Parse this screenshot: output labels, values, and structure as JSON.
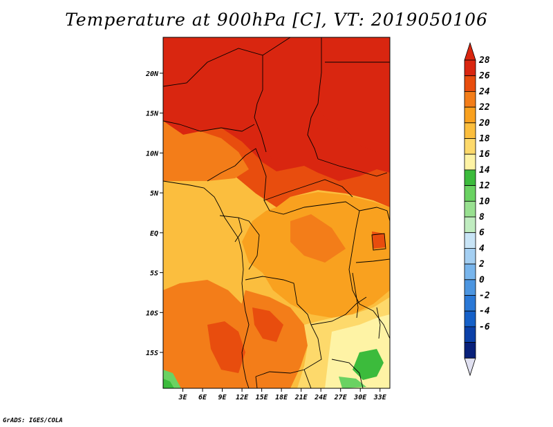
{
  "title": "Temperature at 900hPa [C], VT: 2019050106",
  "credit": "GrADS: IGES/COLA",
  "map": {
    "lat_labels": [
      "20N",
      "15N",
      "10N",
      "5N",
      "EQ",
      "5S",
      "10S",
      "15S"
    ],
    "lon_labels": [
      "3E",
      "6E",
      "9E",
      "12E",
      "15E",
      "18E",
      "21E",
      "24E",
      "27E",
      "30E",
      "33E"
    ],
    "lat_values": [
      20,
      15,
      10,
      5,
      0,
      -5,
      -10,
      -15
    ],
    "lon_values": [
      3,
      6,
      9,
      12,
      15,
      18,
      21,
      24,
      27,
      30,
      33
    ],
    "lon_range": [
      0,
      34.5
    ],
    "lat_range": [
      -19.5,
      24.5
    ]
  },
  "colorbar": {
    "labels": [
      "28",
      "26",
      "24",
      "22",
      "20",
      "18",
      "16",
      "14",
      "12",
      "10",
      "8",
      "6",
      "4",
      "2",
      "0",
      "-2",
      "-4",
      "-6"
    ],
    "colors": [
      "#d92610",
      "#e84d0e",
      "#f37d19",
      "#f9a11f",
      "#fbbe3e",
      "#fdd96b",
      "#fef3a5",
      "#3cbb3c",
      "#6ad262",
      "#98e090",
      "#c0ecc0",
      "#c8e4f6",
      "#a4cff2",
      "#78b5ec",
      "#4c95e0",
      "#2a78d6",
      "#1560c8",
      "#0b40a8",
      "#08207a"
    ],
    "top_color": "#d92610",
    "bottom_color": "#e0e0f0"
  },
  "colors": {
    "hot": "#d92610",
    "warm": "#e84d0e",
    "orange": "#f37d19",
    "amber": "#f9a11f",
    "light_amber": "#fbbe3e",
    "pale": "#fdd96b",
    "cream": "#fef3a5",
    "green": "#3cbb3c",
    "light_green": "#6ad262"
  }
}
